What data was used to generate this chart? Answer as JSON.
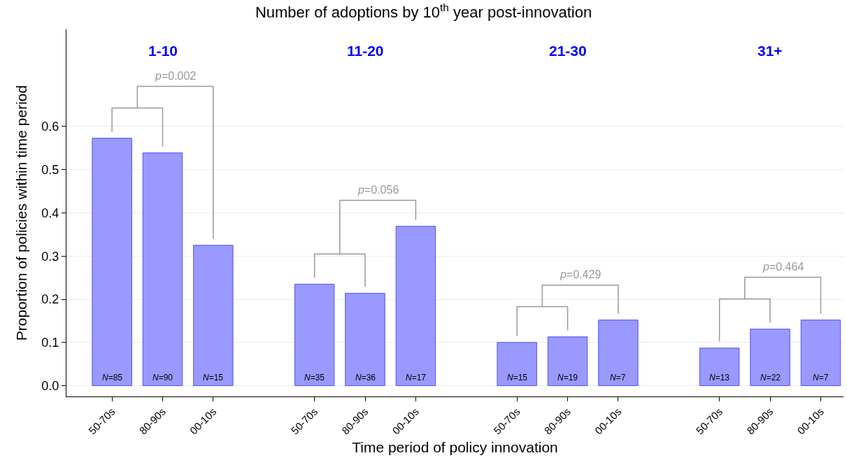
{
  "chart_data": {
    "type": "bar",
    "title": "Number of adoptions by 10$^{th}$ year post-innovation",
    "xlabel": "Time period of policy innovation",
    "ylabel": "Proportion of policies within time period",
    "categories": [
      "50-70s",
      "80-90s",
      "00-10s",
      null,
      "50-70s",
      "80-90s",
      "00-10s",
      null,
      "50-70s",
      "80-90s",
      "00-10s",
      null,
      "50-70s",
      "80-90s",
      "00-10s"
    ],
    "values": [
      0.573,
      0.539,
      0.325,
      null,
      0.235,
      0.214,
      0.369,
      null,
      0.1,
      0.113,
      0.152,
      null,
      0.087,
      0.131,
      0.152
    ],
    "color": "#9999ff",
    "ylim": [
      -0.025,
      0.825
    ],
    "yticks": [
      {
        "value": 0,
        "label": "0.0"
      },
      {
        "value": 0.1,
        "label": "0.1"
      },
      {
        "value": 0.2,
        "label": "0.2"
      },
      {
        "value": 0.3,
        "label": "0.3"
      },
      {
        "value": 0.4,
        "label": "0.4"
      },
      {
        "value": 0.5,
        "label": "0.5"
      },
      {
        "value": 0.6,
        "label": "0.6"
      }
    ],
    "grid": "y",
    "annotations": [
      "1-10",
      "11-20",
      "21-30",
      "31+",
      "p=0.002",
      "p=0.056",
      "p=0.429",
      "p=0.464",
      {
        "text": "N=85",
        "y": 0
      },
      {
        "text": "N=90",
        "y": 0
      },
      {
        "text": "N=15",
        "y": 0
      },
      {
        "text": "N=35",
        "y": 0
      },
      {
        "text": "N=36",
        "y": 0
      },
      {
        "text": "N=17",
        "y": 0
      },
      {
        "text": "N=15",
        "y": 0
      },
      {
        "text": "N=19",
        "y": 0
      },
      {
        "text": "N=7",
        "y": 0
      },
      {
        "text": "N=13",
        "y": 0
      },
      {
        "text": "N=22",
        "y": 0
      },
      {
        "text": "N=7",
        "y": 0
      }
    ]
  }
}
